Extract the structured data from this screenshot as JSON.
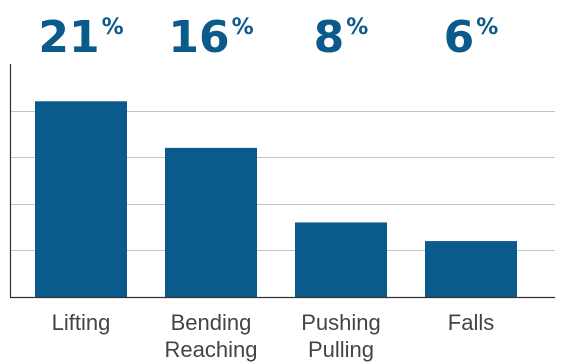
{
  "chart_data": {
    "type": "bar",
    "categories": [
      [
        "Lifting"
      ],
      [
        "Bending",
        "Reaching"
      ],
      [
        "Pushing",
        "Pulling"
      ],
      [
        "Falls"
      ]
    ],
    "values": [
      21,
      16,
      8,
      6
    ],
    "value_labels": [
      {
        "number": "21",
        "unit": "%"
      },
      {
        "number": "16",
        "unit": "%"
      },
      {
        "number": "8",
        "unit": "%"
      },
      {
        "number": "6",
        "unit": "%"
      }
    ],
    "title": "",
    "xlabel": "",
    "ylabel": "",
    "ylim": [
      0,
      25
    ],
    "grid": true,
    "legend": "none"
  },
  "colors": {
    "bar": "#0b5a8c",
    "value_label": "#0b5a8c",
    "gridline": "#c4c4c4",
    "axis": "#333333",
    "category_text": "#444444"
  }
}
